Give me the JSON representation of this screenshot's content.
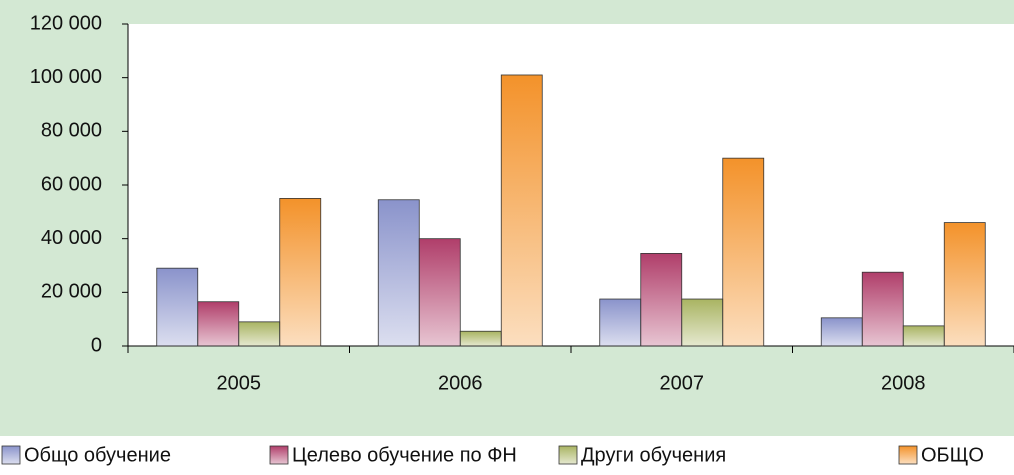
{
  "chart_data": {
    "type": "bar",
    "categories": [
      "2005",
      "2006",
      "2007",
      "2008"
    ],
    "series": [
      {
        "name": "Общо обучение",
        "color": "#8a93cb",
        "values": [
          29000,
          54500,
          17500,
          10500
        ]
      },
      {
        "name": "Целево обучение по ФН",
        "color": "#b03e6a",
        "values": [
          16500,
          40000,
          34500,
          27500
        ]
      },
      {
        "name": "Други обучения",
        "color": "#a9b462",
        "values": [
          9000,
          5500,
          17500,
          7500
        ]
      },
      {
        "name": "ОБЩО",
        "color": "#f3922a",
        "values": [
          55000,
          101000,
          70000,
          46000
        ]
      }
    ],
    "ylim": [
      0,
      120000
    ],
    "yticks": [
      {
        "value": 0,
        "label": "0"
      },
      {
        "value": 20000,
        "label": "20 000"
      },
      {
        "value": 40000,
        "label": "40 000"
      },
      {
        "value": 60000,
        "label": "60 000"
      },
      {
        "value": 80000,
        "label": "80 000"
      },
      {
        "value": 100000,
        "label": "100 000"
      },
      {
        "value": 120000,
        "label": "120 000"
      }
    ],
    "legend": "bottom"
  }
}
